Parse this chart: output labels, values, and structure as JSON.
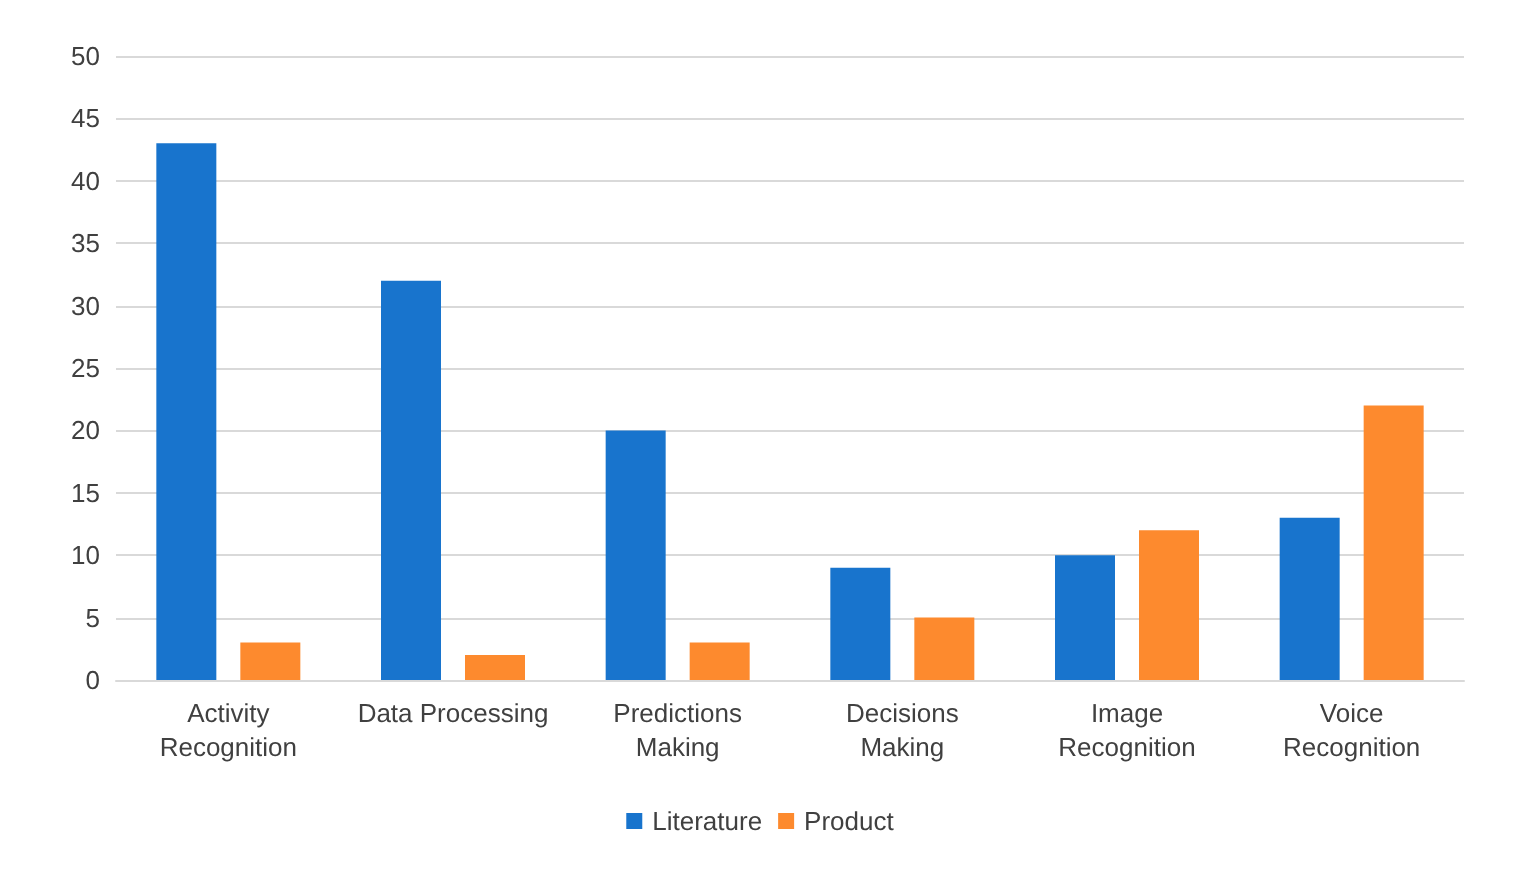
{
  "chart_data": {
    "type": "bar",
    "categories": [
      "Activity\nRecognition",
      "Data Processing",
      "Predictions\nMaking",
      "Decisions\nMaking",
      "Image\nRecognition",
      "Voice\nRecognition"
    ],
    "series": [
      {
        "name": "Literature",
        "color": "#1874cd",
        "values": [
          43,
          32,
          20,
          9,
          10,
          13
        ]
      },
      {
        "name": "Product",
        "color": "#fd8a2e",
        "values": [
          3,
          2,
          3,
          5,
          12,
          22
        ]
      }
    ],
    "ylim": [
      0,
      50
    ],
    "yticks": [
      0,
      5,
      10,
      15,
      20,
      25,
      30,
      35,
      40,
      45,
      50
    ],
    "grid": "y",
    "legend": "bottom"
  }
}
